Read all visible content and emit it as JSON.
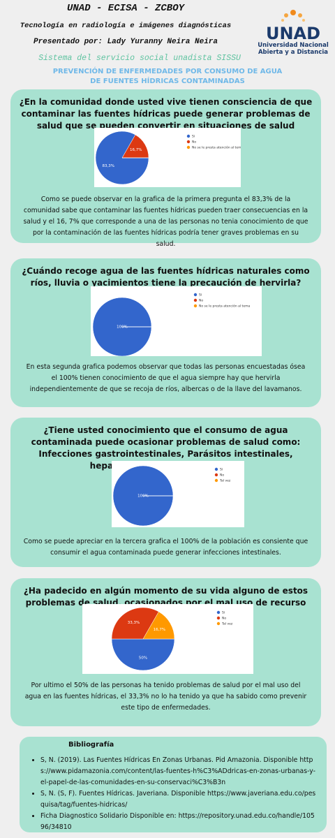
{
  "header": {
    "line1": "UNAD - ECISA - ZCBOY",
    "line2": "Tecnología en radiología e imágenes diagnósticas",
    "line3": "Presentado por: Lady Yuranny Neira Neira",
    "line4": "Sistema del servicio social unadista SISSU",
    "title": "PREVENCIÓN DE ENFERMEDADES POR CONSUMO DE AGUA DE FUENTES HÍDRICAS CONTAMINADAS"
  },
  "logo": {
    "name": "UNAD",
    "line1": "Universidad Nacional",
    "line2": "Abierta y a Distancia"
  },
  "sections": [
    {
      "question": "¿En la comunidad donde usted vive tienen consciencia de que contaminar las fuentes hídricas puede generar problemas de salud que se pueden convertir en situaciones de salud pública?",
      "chart": {
        "type": "pie",
        "categories": [
          "Sí",
          "No",
          "No se le presta atención al tema"
        ],
        "values": [
          83.3,
          16.7,
          0
        ],
        "value_labels": [
          "83,3%",
          "16,7%",
          null
        ],
        "colors": [
          "#3366cc",
          "#dc3912",
          "#ff9900"
        ]
      },
      "text": "Como se puede observar en la grafica de la primera pregunta el 83,3% de la comunidad sabe que contaminar las fuentes hídricas pueden traer consecuencias en la salud y el 16, 7% que corresponde a una de las personas no tenia conocimiento de que por la contaminación de las fuentes hídricas podría tener graves problemas en su salud."
    },
    {
      "question": "¿Cuándo recoge agua de las fuentes hídricas naturales como ríos, lluvia o yacimientos tiene la precaución de hervirla?",
      "chart": {
        "type": "pie",
        "categories": [
          "Sí",
          "No",
          "No se le presta atención al tema"
        ],
        "values": [
          100,
          0,
          0
        ],
        "value_labels": [
          "100%",
          null,
          null
        ],
        "colors": [
          "#3366cc",
          "#dc3912",
          "#ff9900"
        ]
      },
      "text": "En esta segunda grafica podemos observar que todas las personas encuestadas ósea el 100% tienen conocimiento de que el agua siempre hay que hervirla independientemente de que se recoja de ríos, albercas o de la llave del lavamanos."
    },
    {
      "question": "¿Tiene usted conocimiento que el consumo de agua contaminada puede ocasionar problemas de salud como: Infecciones gastrointestinales, Parásitos intestinales, hepatitis, Diarrea, ¿entre otras?",
      "chart": {
        "type": "pie",
        "categories": [
          "Sí",
          "No",
          "Tal vez"
        ],
        "values": [
          100,
          0,
          0
        ],
        "value_labels": [
          "100%",
          null,
          null
        ],
        "colors": [
          "#3366cc",
          "#dc3912",
          "#ff9900"
        ]
      },
      "text": "Como se puede apreciar en la tercera grafica el 100% de la población es consiente que consumir el agua contaminada puede generar infecciones intestinales."
    },
    {
      "question": "¿Ha padecido en algún momento de su vida alguno de estos problemas de salud, ocasionados por el mal uso de recurso hídrico?",
      "chart": {
        "type": "pie",
        "categories": [
          "Sí",
          "No",
          "Tal vez"
        ],
        "values": [
          50,
          33.3,
          16.7
        ],
        "value_labels": [
          "50%",
          "33,3%",
          "16,7%"
        ],
        "colors": [
          "#3366cc",
          "#dc3912",
          "#ff9900"
        ]
      },
      "text": "Por ultimo el 50% de las personas ha tenido problemas de salud por el mal uso del agua en las fuentes hídricas, el 33,3% no lo ha tenido ya que ha sabido como prevenir este tipo de enfermedades."
    }
  ],
  "bibliography": {
    "title": "Bibliografía",
    "items": [
      "S, N. (2019). Las Fuentes Hídricas En Zonas Urbanas. Pid Amazonia. Disponible https://www.pidamazonia.com/content/las-fuentes-h%C3%ADdricas-en-zonas-urbanas-y-el-papel-de-las-comunidades-en-su-conservaci%C3%B3n",
      "S, N. (S, F). Fuentes Hídricas. Javeriana. Disponible https://www.javeriana.edu.co/pesquisa/tag/fuentes-hidricas/",
      "Ficha Diagnostico Solidario Disponible en: https://repository.unad.edu.co/handle/10596/34810"
    ]
  }
}
